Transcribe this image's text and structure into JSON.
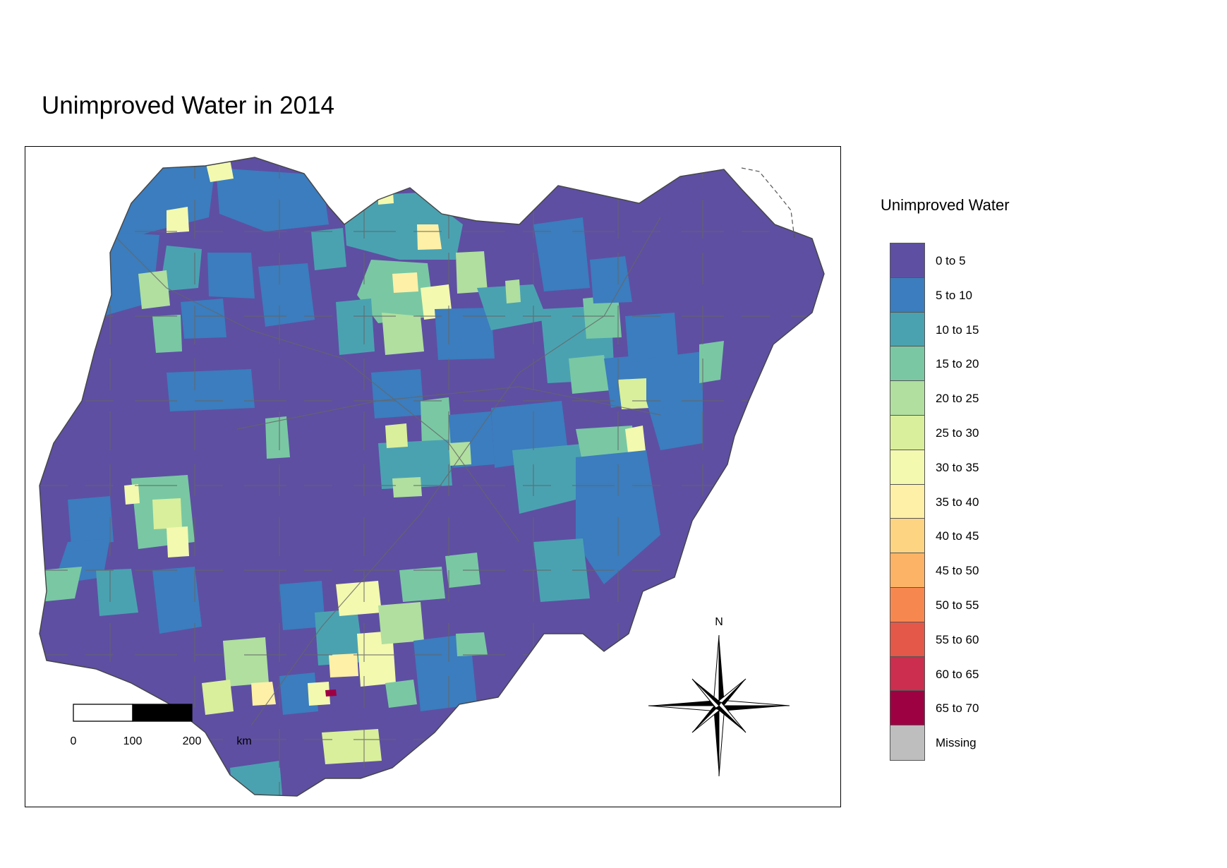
{
  "title": "Unimproved Water in 2014",
  "legend": {
    "title": "Unimproved Water",
    "items": [
      {
        "label": "0 to 5",
        "color": "#5E4FA2"
      },
      {
        "label": "5 to 10",
        "color": "#3B7DBE"
      },
      {
        "label": "10 to 15",
        "color": "#4AA2B1"
      },
      {
        "label": "15 to 20",
        "color": "#79C8A3"
      },
      {
        "label": "20 to 25",
        "color": "#B0DF9F"
      },
      {
        "label": "25 to 30",
        "color": "#D9EF9B"
      },
      {
        "label": "30 to 35",
        "color": "#F3F9AE"
      },
      {
        "label": "35 to 40",
        "color": "#FEF0A7"
      },
      {
        "label": "40 to 45",
        "color": "#FDD582"
      },
      {
        "label": "45 to 50",
        "color": "#FDB366"
      },
      {
        "label": "50 to 55",
        "color": "#F6884F"
      },
      {
        "label": "55 to 60",
        "color": "#E35849"
      },
      {
        "label": "60 to 65",
        "color": "#CB2E4E"
      },
      {
        "label": "65 to 70",
        "color": "#9E0142"
      },
      {
        "label": "Missing",
        "color": "#BEBEBE"
      }
    ]
  },
  "scale_bar": {
    "ticks": [
      "0",
      "100",
      "200"
    ],
    "unit": "km"
  },
  "north_arrow": {
    "label": "N"
  }
}
